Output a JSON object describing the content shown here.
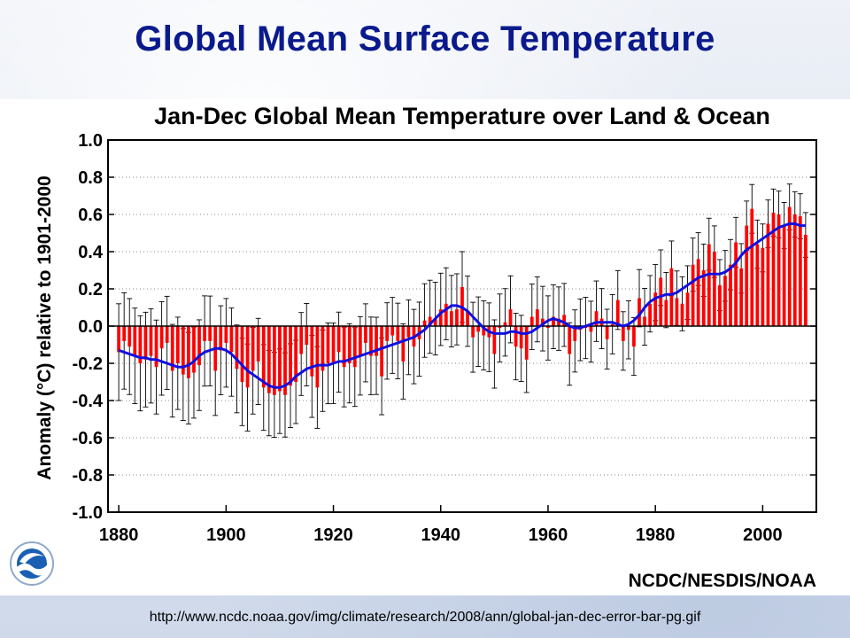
{
  "slide": {
    "title": "Global Mean Surface Temperature",
    "source_url": "http://www.ncdc.noaa.gov/img/climate/research/2008/ann/global-jan-dec-error-bar-pg.gif",
    "credit": "NCDC/NESDIS/NOAA",
    "logo": "noaa-logo"
  },
  "colors": {
    "title": "#0a1a8c",
    "bars": "#ff0000",
    "smooth_line": "#1010e0",
    "error_bars": "#000000"
  },
  "chart_data": {
    "type": "bar",
    "title": "Jan-Dec Global Mean Temperature over Land & Ocean",
    "xlabel": "",
    "ylabel": "Anomaly (°C) relative to 1901-2000",
    "xlim": [
      1878,
      2010
    ],
    "ylim": [
      -1.0,
      1.0
    ],
    "x_ticks": [
      1880,
      1900,
      1920,
      1940,
      1960,
      1980,
      2000
    ],
    "y_ticks": [
      -1.0,
      -0.8,
      -0.6,
      -0.4,
      -0.2,
      0.0,
      0.2,
      0.4,
      0.6,
      0.8,
      1.0
    ],
    "y_tick_labels": [
      "-1.0",
      "-0.8",
      "-0.6",
      "-0.4",
      "-0.2",
      "0.0",
      "0.2",
      "0.4",
      "0.6",
      "0.8",
      "1.0"
    ],
    "grid": "horizontal-dotted",
    "x": [
      1880,
      1881,
      1882,
      1883,
      1884,
      1885,
      1886,
      1887,
      1888,
      1889,
      1890,
      1891,
      1892,
      1893,
      1894,
      1895,
      1896,
      1897,
      1898,
      1899,
      1900,
      1901,
      1902,
      1903,
      1904,
      1905,
      1906,
      1907,
      1908,
      1909,
      1910,
      1911,
      1912,
      1913,
      1914,
      1915,
      1916,
      1917,
      1918,
      1919,
      1920,
      1921,
      1922,
      1923,
      1924,
      1925,
      1926,
      1927,
      1928,
      1929,
      1930,
      1931,
      1932,
      1933,
      1934,
      1935,
      1936,
      1937,
      1938,
      1939,
      1940,
      1941,
      1942,
      1943,
      1944,
      1945,
      1946,
      1947,
      1948,
      1949,
      1950,
      1951,
      1952,
      1953,
      1954,
      1955,
      1956,
      1957,
      1958,
      1959,
      1960,
      1961,
      1962,
      1963,
      1964,
      1965,
      1966,
      1967,
      1968,
      1969,
      1970,
      1971,
      1972,
      1973,
      1974,
      1975,
      1976,
      1977,
      1978,
      1979,
      1980,
      1981,
      1982,
      1983,
      1984,
      1985,
      1986,
      1987,
      1988,
      1989,
      1990,
      1991,
      1992,
      1993,
      1994,
      1995,
      1996,
      1997,
      1998,
      1999,
      2000,
      2001,
      2002,
      2003,
      2004,
      2005,
      2006,
      2007,
      2008
    ],
    "series": [
      {
        "type": "bar",
        "values": [
          -0.14,
          -0.08,
          -0.11,
          -0.16,
          -0.2,
          -0.18,
          -0.16,
          -0.22,
          -0.12,
          -0.09,
          -0.24,
          -0.2,
          -0.26,
          -0.28,
          -0.25,
          -0.21,
          -0.08,
          -0.08,
          -0.24,
          -0.13,
          -0.09,
          -0.14,
          -0.23,
          -0.3,
          -0.33,
          -0.24,
          -0.19,
          -0.33,
          -0.36,
          -0.37,
          -0.35,
          -0.37,
          -0.32,
          -0.3,
          -0.15,
          -0.1,
          -0.27,
          -0.33,
          -0.24,
          -0.2,
          -0.2,
          -0.14,
          -0.22,
          -0.2,
          -0.22,
          -0.16,
          -0.09,
          -0.16,
          -0.16,
          -0.27,
          -0.08,
          -0.05,
          -0.08,
          -0.19,
          -0.06,
          -0.11,
          -0.07,
          0.03,
          0.05,
          0.04,
          0.09,
          0.12,
          0.08,
          0.09,
          0.21,
          0.08,
          -0.06,
          -0.03,
          -0.05,
          -0.06,
          -0.15,
          -0.01,
          0.02,
          0.09,
          -0.11,
          -0.12,
          -0.18,
          0.05,
          0.09,
          0.04,
          -0.01,
          0.05,
          0.04,
          0.06,
          -0.15,
          -0.08,
          -0.02,
          -0.01,
          -0.03,
          0.08,
          0.04,
          -0.07,
          0.01,
          0.14,
          -0.08,
          -0.02,
          -0.11,
          0.15,
          0.05,
          0.12,
          0.18,
          0.26,
          0.14,
          0.31,
          0.15,
          0.12,
          0.18,
          0.33,
          0.36,
          0.3,
          0.44,
          0.4,
          0.22,
          0.27,
          0.33,
          0.45,
          0.31,
          0.54,
          0.63,
          0.44,
          0.42,
          0.55,
          0.61,
          0.6,
          0.54,
          0.64,
          0.6,
          0.59,
          0.49
        ]
      },
      {
        "type": "line",
        "values": [
          -0.13,
          -0.14,
          -0.15,
          -0.16,
          -0.17,
          -0.17,
          -0.18,
          -0.18,
          -0.19,
          -0.2,
          -0.21,
          -0.22,
          -0.22,
          -0.21,
          -0.19,
          -0.16,
          -0.14,
          -0.13,
          -0.12,
          -0.12,
          -0.13,
          -0.15,
          -0.18,
          -0.21,
          -0.24,
          -0.26,
          -0.28,
          -0.3,
          -0.32,
          -0.33,
          -0.33,
          -0.32,
          -0.3,
          -0.27,
          -0.25,
          -0.23,
          -0.22,
          -0.21,
          -0.21,
          -0.21,
          -0.2,
          -0.19,
          -0.19,
          -0.18,
          -0.17,
          -0.16,
          -0.15,
          -0.14,
          -0.13,
          -0.12,
          -0.11,
          -0.1,
          -0.09,
          -0.08,
          -0.07,
          -0.06,
          -0.04,
          -0.02,
          0.01,
          0.04,
          0.07,
          0.09,
          0.11,
          0.11,
          0.1,
          0.08,
          0.05,
          0.02,
          -0.01,
          -0.03,
          -0.04,
          -0.04,
          -0.04,
          -0.03,
          -0.03,
          -0.04,
          -0.04,
          -0.03,
          -0.01,
          0.01,
          0.03,
          0.04,
          0.03,
          0.02,
          0.0,
          -0.01,
          -0.01,
          0.0,
          0.01,
          0.02,
          0.02,
          0.02,
          0.02,
          0.01,
          0.0,
          0.01,
          0.03,
          0.06,
          0.1,
          0.13,
          0.15,
          0.16,
          0.17,
          0.17,
          0.18,
          0.2,
          0.22,
          0.24,
          0.26,
          0.27,
          0.28,
          0.28,
          0.28,
          0.29,
          0.31,
          0.34,
          0.38,
          0.41,
          0.43,
          0.45,
          0.47,
          0.49,
          0.51,
          0.53,
          0.54,
          0.55,
          0.55,
          0.54,
          0.54
        ]
      }
    ],
    "error_bars": "approx. ±0.26 at 1880 narrowing to ±0.12 by 2008 (symmetric about each annual value)"
  }
}
